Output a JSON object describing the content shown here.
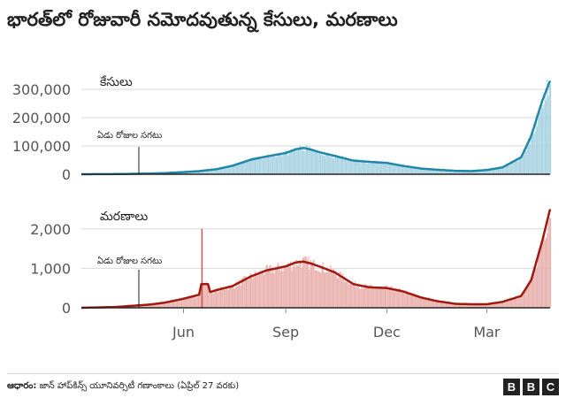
{
  "title": "భారత్‌లో రోజువారీ నమోదవుతున్న కేసులు, మరణాలు",
  "source_label": "ఆధారం:",
  "source_text": "జాన్ హాప్‌కిన్స్ యూనివర్సిటీ గణాంకాలు (ఏప్రిల్ 27 వరకు)",
  "brand": [
    "B",
    "B",
    "C"
  ],
  "colors": {
    "cases_line": "#1f87a8",
    "cases_bar": "#a9d3e2",
    "deaths_line": "#a0180e",
    "deaths_bar": "#e9b1ad",
    "grid": "#d9d9d9",
    "axis": "#222222"
  },
  "chart_data": [
    {
      "type": "area",
      "title": "కేసులు",
      "annotation": "ఏడు రోజుల సగటు",
      "x_ticks": [
        "Jun",
        "Sep",
        "Dec",
        "Mar"
      ],
      "y_ticks": [
        "0",
        "100,000",
        "200,000",
        "300,000"
      ],
      "ylim": [
        0,
        350000
      ],
      "series": [
        {
          "dates": [
            "2020-03-01",
            "2020-04-01",
            "2020-05-01",
            "2020-05-15",
            "2020-06-01",
            "2020-06-15",
            "2020-07-01",
            "2020-07-15",
            "2020-08-01",
            "2020-08-15",
            "2020-09-01",
            "2020-09-10",
            "2020-09-17",
            "2020-09-24",
            "2020-10-01",
            "2020-10-15",
            "2020-11-01",
            "2020-11-15",
            "2020-12-01",
            "2020-12-15",
            "2021-01-01",
            "2021-01-15",
            "2021-02-01",
            "2021-02-15",
            "2021-03-01",
            "2021-03-15",
            "2021-04-01",
            "2021-04-10",
            "2021-04-20",
            "2021-04-27"
          ],
          "values": [
            0,
            500,
            2500,
            4000,
            7500,
            11000,
            18000,
            30000,
            52000,
            63000,
            75000,
            88000,
            93000,
            87000,
            78000,
            65000,
            48000,
            44000,
            40000,
            30000,
            20000,
            16000,
            12000,
            11000,
            15000,
            24000,
            60000,
            135000,
            260000,
            330000
          ]
        }
      ]
    },
    {
      "type": "area",
      "title": "మరణాలు",
      "annotation": "ఏడు రోజుల సగటు",
      "x_ticks": [
        "Jun",
        "Sep",
        "Dec",
        "Mar"
      ],
      "y_ticks": [
        "0",
        "1,000",
        "2,000"
      ],
      "ylim": [
        0,
        2600
      ],
      "series": [
        {
          "dates": [
            "2020-03-01",
            "2020-04-01",
            "2020-05-01",
            "2020-05-15",
            "2020-06-01",
            "2020-06-15",
            "2020-06-17",
            "2020-06-23",
            "2020-06-25",
            "2020-07-01",
            "2020-07-15",
            "2020-08-01",
            "2020-08-15",
            "2020-09-01",
            "2020-09-10",
            "2020-09-17",
            "2020-09-24",
            "2020-10-01",
            "2020-10-15",
            "2020-11-01",
            "2020-11-15",
            "2020-12-01",
            "2020-12-15",
            "2021-01-01",
            "2021-01-15",
            "2021-02-01",
            "2021-02-15",
            "2021-03-01",
            "2021-03-15",
            "2021-04-01",
            "2021-04-10",
            "2021-04-20",
            "2021-04-27"
          ],
          "values": [
            0,
            20,
            80,
            130,
            230,
            330,
            600,
            600,
            400,
            450,
            550,
            800,
            950,
            1050,
            1150,
            1170,
            1120,
            1050,
            900,
            600,
            520,
            500,
            420,
            260,
            170,
            100,
            90,
            90,
            150,
            300,
            700,
            1700,
            2500
          ]
        }
      ]
    }
  ]
}
